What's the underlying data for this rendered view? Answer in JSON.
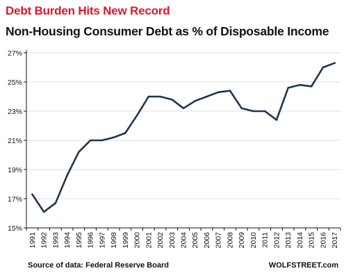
{
  "header": {
    "title": "Debt Burden Hits New Record",
    "subtitle": "Non-Housing Consumer Debt as % of Disposable Income"
  },
  "footer": {
    "source": "Source of data: Federal Reserve Board",
    "brand": "WOLFSTREET.com"
  },
  "colors": {
    "title": "#d7192b",
    "line": "#1f3450",
    "grid": "#dcdcdc"
  },
  "chart_data": {
    "type": "line",
    "title": "Non-Housing Consumer Debt as % of Disposable Income",
    "xlabel": "",
    "ylabel": "",
    "ylim": [
      15,
      27
    ],
    "yticks": [
      15,
      17,
      19,
      21,
      23,
      25,
      27
    ],
    "ytick_labels": [
      "15%",
      "17%",
      "19%",
      "21%",
      "23%",
      "25%",
      "27%"
    ],
    "grid": "horizontal",
    "categories": [
      "1991",
      "1992",
      "1993",
      "1994",
      "1995",
      "1996",
      "1997",
      "1998",
      "1999",
      "2000",
      "2001",
      "2002",
      "2003",
      "2004",
      "2005",
      "2006",
      "2007",
      "2008",
      "2009",
      "2010",
      "2011",
      "2012",
      "2013",
      "2014",
      "2015",
      "2016",
      "2017"
    ],
    "x_labels_note": "",
    "series": [
      {
        "values": [
          17.3,
          16.1,
          16.7,
          18.6,
          20.2,
          21.0,
          21.0,
          21.2,
          21.5,
          22.7,
          24.0,
          24.0,
          23.8,
          23.2,
          23.7,
          24.0,
          24.3,
          24.4,
          23.2,
          23.0,
          23.0,
          22.4,
          24.6,
          24.8,
          24.7,
          26.0,
          26.3
        ]
      }
    ]
  }
}
